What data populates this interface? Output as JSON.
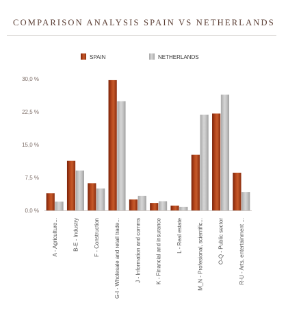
{
  "chart_data": {
    "type": "bar",
    "title": "COMPARISON ANALYSIS SPAIN VS NETHERLANDS",
    "categories": [
      "A - Agriculture...",
      "B-E - Industry",
      "F - Construction",
      "G-I - Wholesale and retail trade...",
      "J - Information and comms",
      "K - Financial and insurance",
      "L - Real estate",
      "M_N - Profesional, scientific...",
      "O-Q - Public sector",
      "R-U - Arts, entertainment ..."
    ],
    "series": [
      {
        "name": "SPAIN",
        "color": "#9a3412",
        "values": [
          3.9,
          11.3,
          6.2,
          29.7,
          2.5,
          1.7,
          1.1,
          12.7,
          22.1,
          8.6
        ]
      },
      {
        "name": "NETHERLANDS",
        "color": "#b8b8b8",
        "values": [
          2.0,
          9.1,
          5.0,
          24.9,
          3.3,
          2.1,
          0.8,
          21.8,
          26.4,
          4.2
        ]
      }
    ],
    "yticks": [
      "0,0 %",
      "7,5 %",
      "15,0 %",
      "22,5 %",
      "30,0 %"
    ],
    "ylim": [
      0,
      30
    ],
    "legend_position": "top",
    "grid": false
  }
}
